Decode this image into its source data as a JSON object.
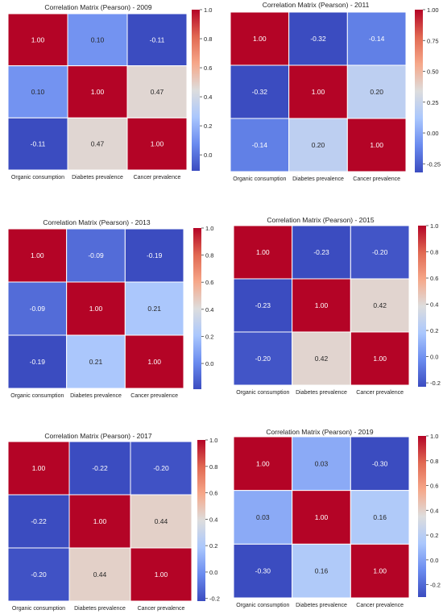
{
  "figure": {
    "colormap": {
      "name": "coolwarm",
      "stops": [
        "#3b4cc0",
        "#6a8bef",
        "#aac7fd",
        "#dddddd",
        "#f6a789",
        "#e16952",
        "#b40426"
      ],
      "cell_border": "#ffffff"
    }
  },
  "chart_data": [
    {
      "type": "heatmap",
      "title": "Correlation Matrix (Pearson) - 2009",
      "x_labels": [
        "Organic consumption",
        "Diabetes prevalence",
        "Cancer prevalence"
      ],
      "y_labels": [
        "",
        "",
        ""
      ],
      "values": [
        [
          1.0,
          0.1,
          -0.11
        ],
        [
          0.1,
          1.0,
          0.47
        ],
        [
          -0.11,
          0.47,
          1.0
        ]
      ],
      "colorbar": {
        "vmin": -0.11,
        "vmax": 1.0,
        "ticks": [
          0.0,
          0.2,
          0.4,
          0.6,
          0.8,
          1.0
        ],
        "tick_labels": [
          "0.0",
          "0.2",
          "0.4",
          "0.6",
          "0.8",
          "1.0"
        ]
      }
    },
    {
      "type": "heatmap",
      "title": "Correlation Matrix (Pearson) - 2011",
      "x_labels": [
        "Organic consumption",
        "Diabetes prevalence",
        "Cancer prevalence"
      ],
      "y_labels": [
        "",
        "",
        ""
      ],
      "values": [
        [
          1.0,
          -0.32,
          -0.14
        ],
        [
          -0.32,
          1.0,
          0.2
        ],
        [
          -0.14,
          0.2,
          1.0
        ]
      ],
      "colorbar": {
        "vmin": -0.32,
        "vmax": 1.0,
        "ticks": [
          -0.25,
          0.0,
          0.25,
          0.5,
          0.75,
          1.0
        ],
        "tick_labels": [
          "-0.25",
          "0.00",
          "0.25",
          "0.50",
          "0.75",
          "1.00"
        ]
      }
    },
    {
      "type": "heatmap",
      "title": "Correlation Matrix (Pearson) - 2013",
      "x_labels": [
        "Organic consumption",
        "Diabetes prevalence",
        "Cancer prevalence"
      ],
      "y_labels": [
        "",
        "",
        ""
      ],
      "values": [
        [
          1.0,
          -0.09,
          -0.19
        ],
        [
          -0.09,
          1.0,
          0.21
        ],
        [
          -0.19,
          0.21,
          1.0
        ]
      ],
      "colorbar": {
        "vmin": -0.19,
        "vmax": 1.0,
        "ticks": [
          0.0,
          0.2,
          0.4,
          0.6,
          0.8,
          1.0
        ],
        "tick_labels": [
          "0.0",
          "0.2",
          "0.4",
          "0.6",
          "0.8",
          "1.0"
        ]
      }
    },
    {
      "type": "heatmap",
      "title": "Correlation Matrix (Pearson) - 2015",
      "x_labels": [
        "Organic consumption",
        "Diabetes prevalence",
        "Cancer prevalence"
      ],
      "y_labels": [
        "",
        "",
        ""
      ],
      "values": [
        [
          1.0,
          -0.23,
          -0.2
        ],
        [
          -0.23,
          1.0,
          0.42
        ],
        [
          -0.2,
          0.42,
          1.0
        ]
      ],
      "colorbar": {
        "vmin": -0.23,
        "vmax": 1.0,
        "ticks": [
          -0.2,
          0.0,
          0.2,
          0.4,
          0.6,
          0.8,
          1.0
        ],
        "tick_labels": [
          "-0.2",
          "0.0",
          "0.2",
          "0.4",
          "0.6",
          "0.8",
          "1.0"
        ]
      }
    },
    {
      "type": "heatmap",
      "title": "Correlation Matrix (Pearson) - 2017",
      "x_labels": [
        "Organic consumption",
        "Diabetes prevalence",
        "Cancer prevalence"
      ],
      "y_labels": [
        "",
        "",
        ""
      ],
      "values": [
        [
          1.0,
          -0.22,
          -0.2
        ],
        [
          -0.22,
          1.0,
          0.44
        ],
        [
          -0.2,
          0.44,
          1.0
        ]
      ],
      "colorbar": {
        "vmin": -0.22,
        "vmax": 1.0,
        "ticks": [
          -0.2,
          0.0,
          0.2,
          0.4,
          0.6,
          0.8,
          1.0
        ],
        "tick_labels": [
          "-0.2",
          "0.0",
          "0.2",
          "0.4",
          "0.6",
          "0.8",
          "1.0"
        ]
      }
    },
    {
      "type": "heatmap",
      "title": "Correlation Matrix (Pearson) - 2019",
      "x_labels": [
        "Organic consumption",
        "Diabetes prevalence",
        "Cancer prevalence"
      ],
      "y_labels": [
        "",
        "",
        ""
      ],
      "values": [
        [
          1.0,
          0.03,
          -0.3
        ],
        [
          0.03,
          1.0,
          0.16
        ],
        [
          -0.3,
          0.16,
          1.0
        ]
      ],
      "colorbar": {
        "vmin": -0.3,
        "vmax": 1.0,
        "ticks": [
          -0.2,
          0.0,
          0.2,
          0.4,
          0.6,
          0.8,
          1.0
        ],
        "tick_labels": [
          "-0.2",
          "0.0",
          "0.2",
          "0.4",
          "0.6",
          "0.8",
          "1.0"
        ]
      }
    }
  ]
}
